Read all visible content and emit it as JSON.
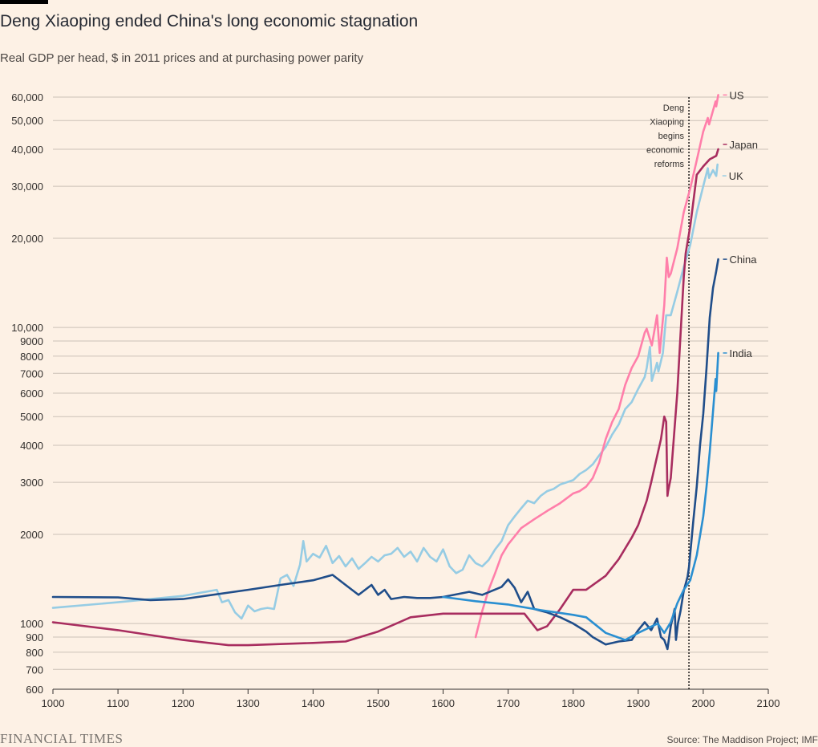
{
  "header": {
    "title": "Deng Xiaoping ended China's long economic stagnation",
    "subtitle": "Real GDP per head, $ in 2011 prices and at purchasing power parity"
  },
  "footer": {
    "brand": "FINANCIAL TIMES",
    "source": "Source: The Maddison Project; IMF"
  },
  "chart_data": {
    "type": "line",
    "title": "Deng Xiaoping ended China's long economic stagnation",
    "subtitle": "Real GDP per head, $ in 2011 prices and at purchasing power parity",
    "xlabel": "",
    "ylabel": "",
    "y_scale": "log",
    "xlim": [
      1000,
      2100
    ],
    "ylim": [
      600,
      60000
    ],
    "grid": true,
    "x_ticks": [
      1000,
      1100,
      1200,
      1300,
      1400,
      1500,
      1600,
      1700,
      1800,
      1900,
      2000,
      2100
    ],
    "x_tick_labels": [
      "1000",
      "1100",
      "1200",
      "1300",
      "1400",
      "1500",
      "1600",
      "1700",
      "1800",
      "1900",
      "2000",
      "2100"
    ],
    "y_ticks": [
      600,
      700,
      800,
      900,
      1000,
      2000,
      3000,
      4000,
      5000,
      6000,
      7000,
      8000,
      9000,
      10000,
      20000,
      30000,
      40000,
      50000,
      60000
    ],
    "y_tick_labels": [
      "600",
      "700",
      "800",
      "900",
      "1000",
      "2000",
      "3000",
      "4000",
      "5000",
      "6000",
      "7000",
      "8000",
      "9000",
      "10,000",
      "20,000",
      "30,000",
      "40,000",
      "50,000",
      "60,000"
    ],
    "annotation": {
      "year": 1978,
      "lines": [
        "Deng",
        "Xiaoping",
        "begins",
        "economic",
        "reforms"
      ]
    },
    "series": [
      {
        "name": "UK",
        "color": "#96cce4",
        "points": [
          [
            1000,
            1130
          ],
          [
            1100,
            1180
          ],
          [
            1200,
            1240
          ],
          [
            1252,
            1300
          ],
          [
            1260,
            1180
          ],
          [
            1270,
            1200
          ],
          [
            1280,
            1090
          ],
          [
            1290,
            1040
          ],
          [
            1300,
            1150
          ],
          [
            1310,
            1100
          ],
          [
            1320,
            1120
          ],
          [
            1330,
            1130
          ],
          [
            1340,
            1120
          ],
          [
            1350,
            1420
          ],
          [
            1360,
            1460
          ],
          [
            1370,
            1340
          ],
          [
            1380,
            1580
          ],
          [
            1385,
            1900
          ],
          [
            1390,
            1620
          ],
          [
            1400,
            1720
          ],
          [
            1410,
            1670
          ],
          [
            1420,
            1830
          ],
          [
            1430,
            1600
          ],
          [
            1440,
            1690
          ],
          [
            1450,
            1560
          ],
          [
            1460,
            1660
          ],
          [
            1470,
            1530
          ],
          [
            1480,
            1600
          ],
          [
            1490,
            1680
          ],
          [
            1500,
            1620
          ],
          [
            1510,
            1700
          ],
          [
            1520,
            1720
          ],
          [
            1530,
            1800
          ],
          [
            1540,
            1680
          ],
          [
            1550,
            1750
          ],
          [
            1560,
            1620
          ],
          [
            1570,
            1800
          ],
          [
            1580,
            1680
          ],
          [
            1590,
            1620
          ],
          [
            1600,
            1780
          ],
          [
            1610,
            1560
          ],
          [
            1620,
            1480
          ],
          [
            1630,
            1520
          ],
          [
            1640,
            1700
          ],
          [
            1650,
            1600
          ],
          [
            1660,
            1560
          ],
          [
            1670,
            1640
          ],
          [
            1680,
            1780
          ],
          [
            1690,
            1900
          ],
          [
            1700,
            2150
          ],
          [
            1710,
            2300
          ],
          [
            1720,
            2450
          ],
          [
            1730,
            2600
          ],
          [
            1740,
            2550
          ],
          [
            1750,
            2700
          ],
          [
            1760,
            2800
          ],
          [
            1770,
            2850
          ],
          [
            1780,
            2950
          ],
          [
            1790,
            3000
          ],
          [
            1800,
            3050
          ],
          [
            1810,
            3200
          ],
          [
            1820,
            3300
          ],
          [
            1830,
            3450
          ],
          [
            1840,
            3700
          ],
          [
            1850,
            3950
          ],
          [
            1860,
            4350
          ],
          [
            1870,
            4700
          ],
          [
            1880,
            5300
          ],
          [
            1890,
            5600
          ],
          [
            1900,
            6200
          ],
          [
            1910,
            6800
          ],
          [
            1913,
            7300
          ],
          [
            1918,
            8600
          ],
          [
            1921,
            6600
          ],
          [
            1929,
            7600
          ],
          [
            1931,
            7100
          ],
          [
            1938,
            8200
          ],
          [
            1943,
            11000
          ],
          [
            1950,
            11000
          ],
          [
            1960,
            13200
          ],
          [
            1970,
            16000
          ],
          [
            1980,
            19000
          ],
          [
            1990,
            24500
          ],
          [
            2000,
            30000
          ],
          [
            2007,
            34500
          ],
          [
            2009,
            32000
          ],
          [
            2015,
            34000
          ],
          [
            2020,
            32500
          ],
          [
            2022,
            35500
          ]
        ]
      },
      {
        "name": "US",
        "color": "#ff7faa",
        "points": [
          [
            1650,
            900
          ],
          [
            1660,
            1100
          ],
          [
            1670,
            1300
          ],
          [
            1680,
            1480
          ],
          [
            1690,
            1700
          ],
          [
            1700,
            1850
          ],
          [
            1720,
            2100
          ],
          [
            1740,
            2250
          ],
          [
            1760,
            2400
          ],
          [
            1780,
            2550
          ],
          [
            1800,
            2750
          ],
          [
            1810,
            2800
          ],
          [
            1820,
            2900
          ],
          [
            1830,
            3100
          ],
          [
            1840,
            3500
          ],
          [
            1850,
            4200
          ],
          [
            1860,
            4800
          ],
          [
            1870,
            5300
          ],
          [
            1880,
            6400
          ],
          [
            1890,
            7300
          ],
          [
            1900,
            8000
          ],
          [
            1910,
            9600
          ],
          [
            1913,
            9900
          ],
          [
            1921,
            8700
          ],
          [
            1929,
            11000
          ],
          [
            1933,
            8200
          ],
          [
            1940,
            11900
          ],
          [
            1944,
            17200
          ],
          [
            1947,
            14800
          ],
          [
            1950,
            15200
          ],
          [
            1960,
            18500
          ],
          [
            1970,
            24500
          ],
          [
            1980,
            29500
          ],
          [
            1990,
            36700
          ],
          [
            2000,
            45900
          ],
          [
            2007,
            51000
          ],
          [
            2009,
            48500
          ],
          [
            2019,
            58000
          ],
          [
            2020,
            55800
          ],
          [
            2023,
            61000
          ]
        ]
      },
      {
        "name": "Japan",
        "color": "#a82d5f",
        "points": [
          [
            1000,
            1010
          ],
          [
            1100,
            950
          ],
          [
            1200,
            880
          ],
          [
            1270,
            845
          ],
          [
            1300,
            845
          ],
          [
            1400,
            860
          ],
          [
            1450,
            870
          ],
          [
            1500,
            940
          ],
          [
            1550,
            1050
          ],
          [
            1600,
            1080
          ],
          [
            1650,
            1080
          ],
          [
            1700,
            1080
          ],
          [
            1725,
            1080
          ],
          [
            1745,
            950
          ],
          [
            1760,
            980
          ],
          [
            1780,
            1120
          ],
          [
            1800,
            1300
          ],
          [
            1820,
            1300
          ],
          [
            1850,
            1450
          ],
          [
            1870,
            1650
          ],
          [
            1890,
            1950
          ],
          [
            1900,
            2150
          ],
          [
            1913,
            2600
          ],
          [
            1920,
            3000
          ],
          [
            1935,
            4200
          ],
          [
            1940,
            5000
          ],
          [
            1943,
            4800
          ],
          [
            1945,
            2700
          ],
          [
            1946,
            2800
          ],
          [
            1950,
            3100
          ],
          [
            1960,
            6000
          ],
          [
            1970,
            14800
          ],
          [
            1973,
            17800
          ],
          [
            1980,
            22000
          ],
          [
            1990,
            32800
          ],
          [
            2000,
            35000
          ],
          [
            2010,
            37000
          ],
          [
            2020,
            38000
          ],
          [
            2023,
            40000
          ]
        ]
      },
      {
        "name": "China",
        "color": "#204e8a",
        "points": [
          [
            1000,
            1230
          ],
          [
            1100,
            1225
          ],
          [
            1150,
            1200
          ],
          [
            1200,
            1210
          ],
          [
            1300,
            1300
          ],
          [
            1350,
            1350
          ],
          [
            1400,
            1400
          ],
          [
            1430,
            1460
          ],
          [
            1450,
            1350
          ],
          [
            1470,
            1250
          ],
          [
            1490,
            1350
          ],
          [
            1500,
            1250
          ],
          [
            1510,
            1300
          ],
          [
            1520,
            1210
          ],
          [
            1540,
            1230
          ],
          [
            1560,
            1220
          ],
          [
            1580,
            1220
          ],
          [
            1600,
            1230
          ],
          [
            1640,
            1280
          ],
          [
            1660,
            1250
          ],
          [
            1690,
            1330
          ],
          [
            1700,
            1410
          ],
          [
            1710,
            1320
          ],
          [
            1720,
            1180
          ],
          [
            1730,
            1280
          ],
          [
            1740,
            1120
          ],
          [
            1760,
            1090
          ],
          [
            1780,
            1050
          ],
          [
            1800,
            1000
          ],
          [
            1820,
            940
          ],
          [
            1830,
            900
          ],
          [
            1850,
            850
          ],
          [
            1870,
            870
          ],
          [
            1890,
            880
          ],
          [
            1900,
            950
          ],
          [
            1910,
            1010
          ],
          [
            1920,
            950
          ],
          [
            1929,
            1040
          ],
          [
            1935,
            900
          ],
          [
            1940,
            880
          ],
          [
            1945,
            820
          ],
          [
            1950,
            980
          ],
          [
            1956,
            1120
          ],
          [
            1958,
            880
          ],
          [
            1961,
            1000
          ],
          [
            1965,
            1100
          ],
          [
            1970,
            1290
          ],
          [
            1976,
            1440
          ],
          [
            1978,
            1550
          ],
          [
            1985,
            2250
          ],
          [
            1990,
            2900
          ],
          [
            1995,
            4000
          ],
          [
            2000,
            5100
          ],
          [
            2005,
            7300
          ],
          [
            2010,
            10800
          ],
          [
            2015,
            13600
          ],
          [
            2020,
            15500
          ],
          [
            2023,
            17000
          ]
        ]
      },
      {
        "name": "India",
        "color": "#2a8fd1",
        "points": [
          [
            1600,
            1230
          ],
          [
            1650,
            1190
          ],
          [
            1700,
            1160
          ],
          [
            1750,
            1110
          ],
          [
            1800,
            1070
          ],
          [
            1820,
            1050
          ],
          [
            1850,
            930
          ],
          [
            1880,
            880
          ],
          [
            1900,
            930
          ],
          [
            1913,
            960
          ],
          [
            1930,
            1000
          ],
          [
            1940,
            930
          ],
          [
            1950,
            1010
          ],
          [
            1960,
            1170
          ],
          [
            1970,
            1300
          ],
          [
            1980,
            1400
          ],
          [
            1990,
            1700
          ],
          [
            2000,
            2300
          ],
          [
            2005,
            2900
          ],
          [
            2010,
            3800
          ],
          [
            2015,
            5200
          ],
          [
            2019,
            6700
          ],
          [
            2020,
            6100
          ],
          [
            2023,
            8200
          ]
        ]
      }
    ]
  }
}
